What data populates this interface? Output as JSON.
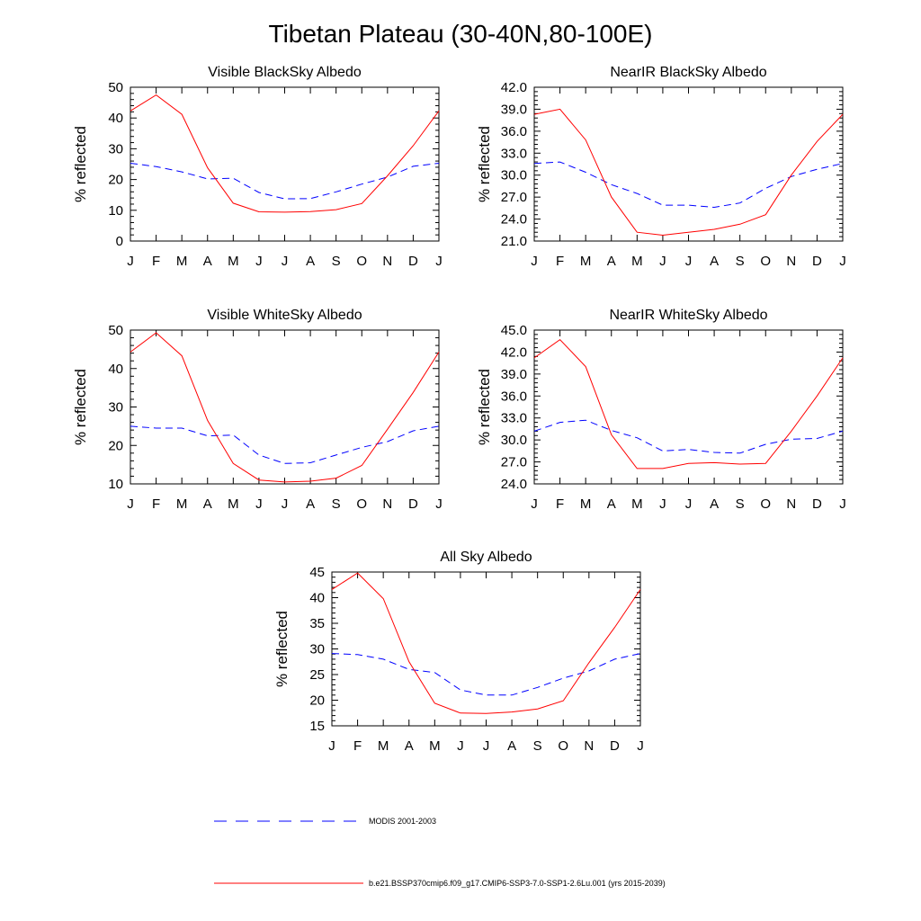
{
  "title": "Tibetan Plateau (30-40N,80-100E)",
  "legend": [
    {
      "label": "MODIS 2001-2003",
      "color": "#0000ff",
      "dash": true
    },
    {
      "label": "b.e21.BSSP370cmip6.f09_g17.CMIP6-SSP3-7.0-SSP1-2.6Lu.001 (yrs 2015-2039)",
      "color": "#ff0000",
      "dash": false
    }
  ],
  "chart_data": [
    {
      "type": "line",
      "title": "Visible BlackSky Albedo",
      "ylabel": "% reflected",
      "categories": [
        "J",
        "F",
        "M",
        "A",
        "M",
        "J",
        "J",
        "A",
        "S",
        "O",
        "N",
        "D",
        "J"
      ],
      "ylim": [
        0,
        50
      ],
      "yticks": [
        "0",
        "10",
        "20",
        "30",
        "40",
        "50"
      ],
      "series": [
        {
          "name": "MODIS 2001-2003",
          "color": "#0000ff",
          "dash": true,
          "values": [
            25.3,
            24.2,
            22.5,
            20.2,
            20.4,
            15.8,
            13.7,
            13.8,
            16.0,
            18.5,
            20.8,
            24.3,
            25.3
          ]
        },
        {
          "name": "b.e21.BSSP370cmip6.f09_g17.CMIP6-SSP3-7.0-SSP1-2.6Lu.001 (yrs 2015-2039)",
          "color": "#ff0000",
          "dash": false,
          "values": [
            42.3,
            47.5,
            41.2,
            23.8,
            12.3,
            9.5,
            9.4,
            9.6,
            10.2,
            12.2,
            21.2,
            31.0,
            42.3
          ]
        }
      ]
    },
    {
      "type": "line",
      "title": "NearIR BlackSky Albedo",
      "ylabel": "% reflected",
      "categories": [
        "J",
        "F",
        "M",
        "A",
        "M",
        "J",
        "J",
        "A",
        "S",
        "O",
        "N",
        "D",
        "J"
      ],
      "ylim": [
        21,
        42
      ],
      "yticks": [
        "21.0",
        "24.0",
        "27.0",
        "30.0",
        "33.0",
        "36.0",
        "39.0",
        "42.0"
      ],
      "series": [
        {
          "name": "MODIS 2001-2003",
          "color": "#0000ff",
          "dash": true,
          "values": [
            31.6,
            31.8,
            30.4,
            28.7,
            27.5,
            25.9,
            25.9,
            25.6,
            26.2,
            28.2,
            29.8,
            30.8,
            31.6
          ]
        },
        {
          "name": "b.e21.BSSP370cmip6.f09_g17.CMIP6-SSP3-7.0-SSP1-2.6Lu.001 (yrs 2015-2039)",
          "color": "#ff0000",
          "dash": false,
          "values": [
            38.3,
            39.0,
            34.8,
            27.0,
            22.2,
            21.8,
            22.2,
            22.6,
            23.3,
            24.6,
            30.0,
            34.6,
            38.3
          ]
        }
      ]
    },
    {
      "type": "line",
      "title": "Visible WhiteSky Albedo",
      "ylabel": "% reflected",
      "categories": [
        "J",
        "F",
        "M",
        "A",
        "M",
        "J",
        "J",
        "A",
        "S",
        "O",
        "N",
        "D",
        "J"
      ],
      "ylim": [
        10,
        50
      ],
      "yticks": [
        "10",
        "20",
        "30",
        "40",
        "50"
      ],
      "series": [
        {
          "name": "MODIS 2001-2003",
          "color": "#0000ff",
          "dash": true,
          "values": [
            25.0,
            24.5,
            24.5,
            22.5,
            22.7,
            17.5,
            15.3,
            15.5,
            17.5,
            19.5,
            21.0,
            23.8,
            25.0
          ]
        },
        {
          "name": "b.e21.BSSP370cmip6.f09_g17.CMIP6-SSP3-7.0-SSP1-2.6Lu.001 (yrs 2015-2039)",
          "color": "#ff0000",
          "dash": false,
          "values": [
            44.3,
            49.3,
            43.3,
            26.5,
            15.3,
            11.0,
            10.5,
            10.7,
            11.5,
            14.8,
            24.2,
            33.8,
            44.3
          ]
        }
      ]
    },
    {
      "type": "line",
      "title": "NearIR WhiteSky Albedo",
      "ylabel": "% reflected",
      "categories": [
        "J",
        "F",
        "M",
        "A",
        "M",
        "J",
        "J",
        "A",
        "S",
        "O",
        "N",
        "D",
        "J"
      ],
      "ylim": [
        24,
        45
      ],
      "yticks": [
        "24.0",
        "27.0",
        "30.0",
        "33.0",
        "36.0",
        "39.0",
        "42.0",
        "45.0"
      ],
      "series": [
        {
          "name": "MODIS 2001-2003",
          "color": "#0000ff",
          "dash": true,
          "values": [
            31.2,
            32.4,
            32.7,
            31.3,
            30.3,
            28.5,
            28.7,
            28.3,
            28.2,
            29.4,
            30.1,
            30.2,
            31.2
          ]
        },
        {
          "name": "b.e21.BSSP370cmip6.f09_g17.CMIP6-SSP3-7.0-SSP1-2.6Lu.001 (yrs 2015-2039)",
          "color": "#ff0000",
          "dash": false,
          "values": [
            41.2,
            43.7,
            40.0,
            30.7,
            26.1,
            26.1,
            26.8,
            26.9,
            26.7,
            26.8,
            31.2,
            36.0,
            41.2
          ]
        }
      ]
    },
    {
      "type": "line",
      "title": "All Sky Albedo",
      "ylabel": "% reflected",
      "categories": [
        "J",
        "F",
        "M",
        "A",
        "M",
        "J",
        "J",
        "A",
        "S",
        "O",
        "N",
        "D",
        "J"
      ],
      "ylim": [
        15,
        45
      ],
      "yticks": [
        "15",
        "20",
        "25",
        "30",
        "35",
        "40",
        "45"
      ],
      "series": [
        {
          "name": "MODIS 2001-2003",
          "color": "#0000ff",
          "dash": true,
          "values": [
            29.1,
            28.9,
            28.0,
            26.0,
            25.4,
            22.0,
            21.0,
            21.0,
            22.5,
            24.3,
            25.7,
            28.0,
            29.1
          ]
        },
        {
          "name": "b.e21.BSSP370cmip6.f09_g17.CMIP6-SSP3-7.0-SSP1-2.6Lu.001 (yrs 2015-2039)",
          "color": "#ff0000",
          "dash": false,
          "values": [
            41.6,
            44.8,
            39.8,
            27.5,
            19.4,
            17.5,
            17.4,
            17.7,
            18.3,
            19.9,
            27.3,
            34.2,
            41.6
          ]
        }
      ]
    }
  ]
}
